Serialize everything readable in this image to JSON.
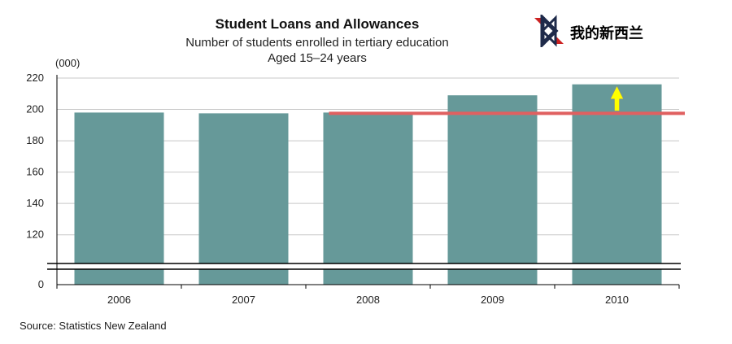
{
  "chart_data": {
    "type": "bar",
    "title": "Student Loans and Allowances",
    "subtitle": [
      "Number of students enrolled in tertiary education",
      "Aged 15–24 years"
    ],
    "unit_label": "(000)",
    "categories": [
      "2006",
      "2007",
      "2008",
      "2009",
      "2010"
    ],
    "values": [
      198,
      197.5,
      198,
      209,
      216
    ],
    "ylim": [
      110,
      220
    ],
    "y_ticks": [
      "0",
      "120",
      "140",
      "160",
      "180",
      "200",
      "220"
    ],
    "axis_break": true,
    "grid": true,
    "bar_color": "#669999",
    "annotations": {
      "reference_line": {
        "y": 197.5,
        "from_category": "2008",
        "color": "#e06060"
      },
      "arrow": {
        "category": "2010",
        "color": "#ffff00"
      }
    },
    "source": "Source: Statistics New Zealand"
  },
  "logo": {
    "text": "我的新西兰"
  }
}
